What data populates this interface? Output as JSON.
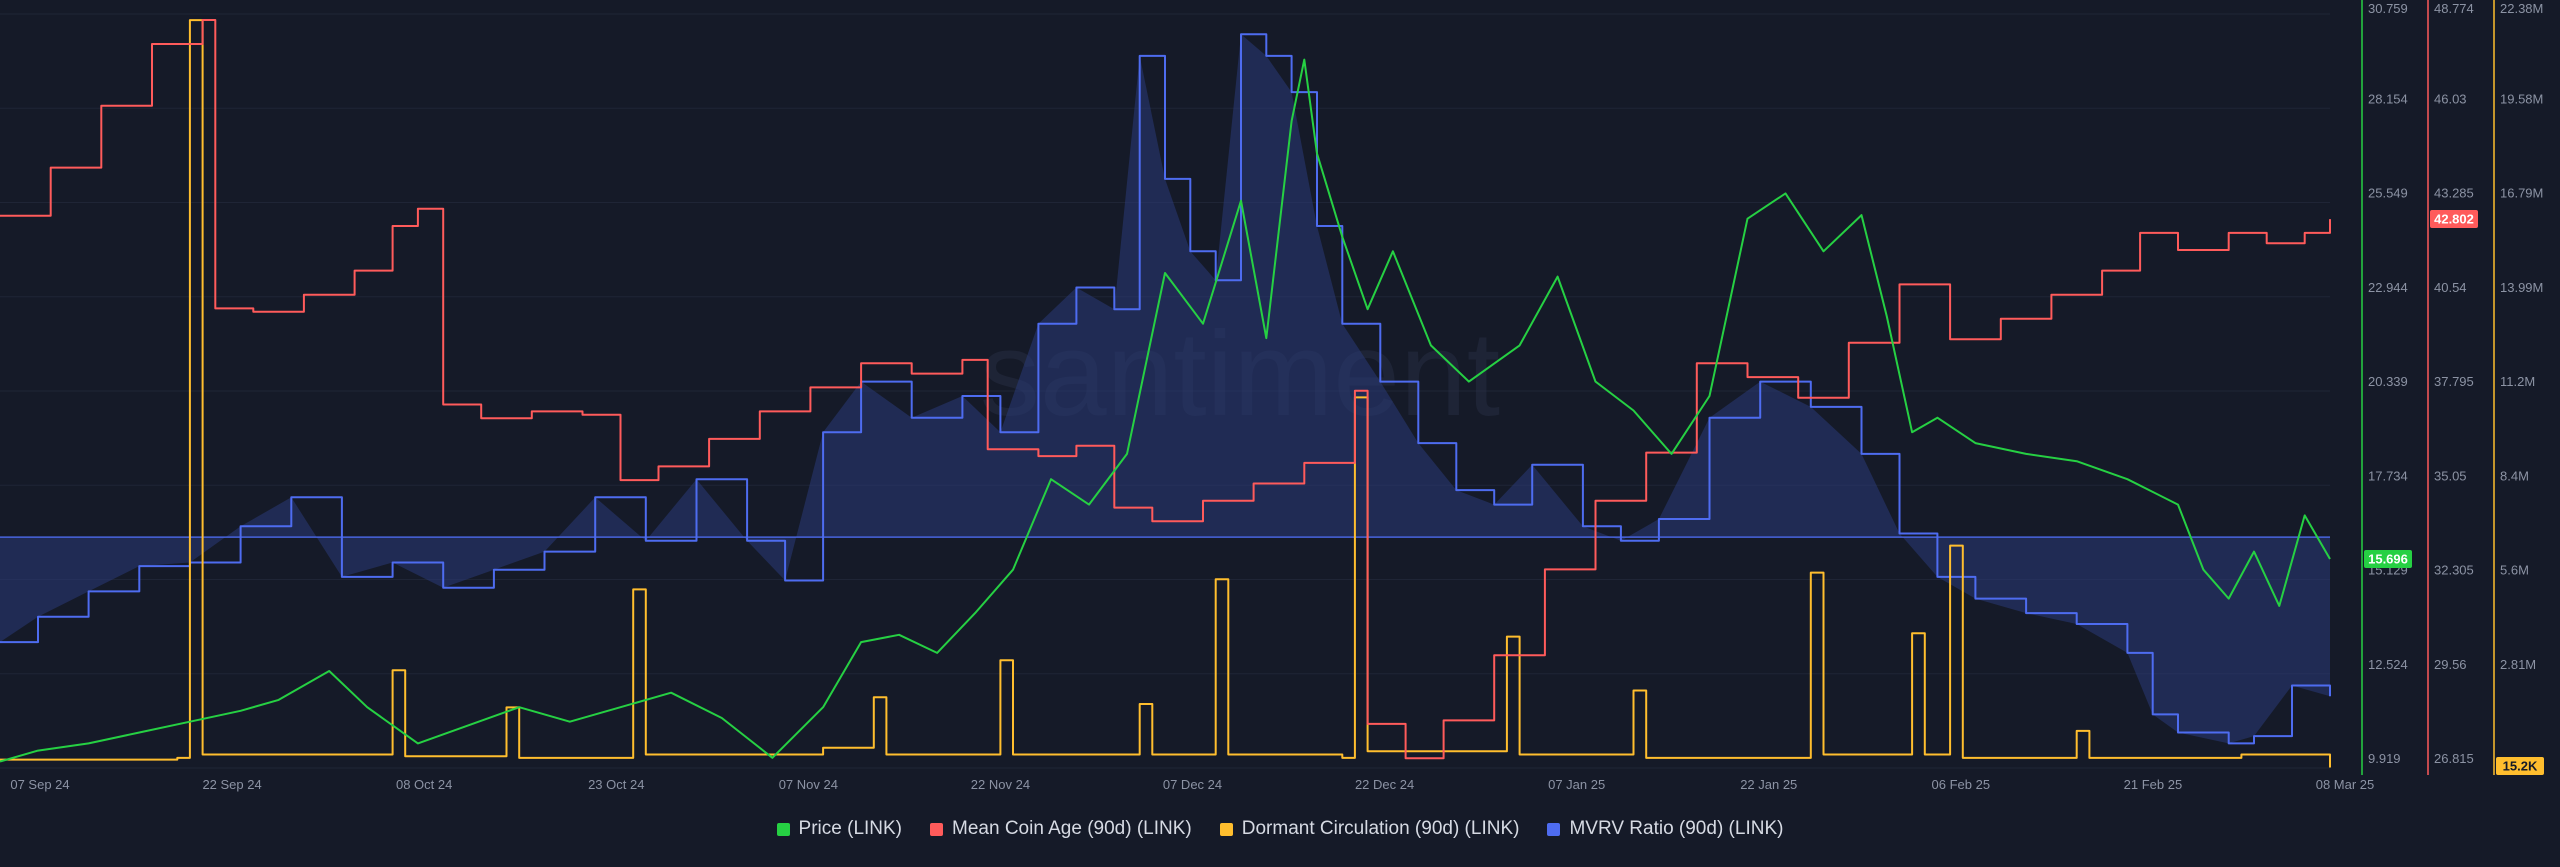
{
  "watermark": "santiment",
  "colors": {
    "background": "#151a28",
    "price": "#26d043",
    "mean_coin_age": "#ff5b5b",
    "dormant": "#ffbe2e",
    "mvrv": "#4e6cf0",
    "mvrv_fill": "#2a3a78",
    "grid": "#1f2536"
  },
  "legend": [
    {
      "label": "Price (LINK)",
      "color": "#26d043"
    },
    {
      "label": "Mean Coin Age (90d) (LINK)",
      "color": "#ff5b5b"
    },
    {
      "label": "Dormant Circulation (90d) (LINK)",
      "color": "#ffbe2e"
    },
    {
      "label": "MVRV Ratio (90d) (LINK)",
      "color": "#4e6cf0"
    }
  ],
  "chart_data": {
    "type": "line",
    "x_range": [
      "2024-09-05",
      "2025-03-08"
    ],
    "x_ticks": [
      "07 Sep 24",
      "22 Sep 24",
      "08 Oct 24",
      "23 Oct 24",
      "07 Nov 24",
      "22 Nov 24",
      "07 Dec 24",
      "22 Dec 24",
      "07 Jan 25",
      "22 Jan 25",
      "06 Feb 25",
      "21 Feb 25",
      "08 Mar 25"
    ],
    "axes": {
      "price": {
        "ticks": [
          "30.759",
          "28.154",
          "25.549",
          "22.944",
          "20.339",
          "17.734",
          "15.129",
          "12.524",
          "9.919"
        ],
        "range": [
          9.919,
          30.759
        ],
        "last": "15.696"
      },
      "mean_coin_age": {
        "ticks": [
          "48.774",
          "46.03",
          "43.285",
          "40.54",
          "37.795",
          "35.05",
          "32.305",
          "29.56",
          "26.815"
        ],
        "range": [
          26.815,
          48.774
        ],
        "last": "42.802"
      },
      "dormant": {
        "ticks": [
          "22.38M",
          "19.58M",
          "16.79M",
          "13.99M",
          "11.2M",
          "8.4M",
          "5.6M",
          "2.81M"
        ],
        "range": [
          0,
          22.38
        ],
        "last": "15.2K"
      }
    },
    "series": [
      {
        "name": "Price (LINK)",
        "axis": "price",
        "points": [
          [
            "2024-09-05",
            10.1
          ],
          [
            "2024-09-08",
            10.4
          ],
          [
            "2024-09-12",
            10.6
          ],
          [
            "2024-09-16",
            10.9
          ],
          [
            "2024-09-20",
            11.2
          ],
          [
            "2024-09-24",
            11.5
          ],
          [
            "2024-09-27",
            11.8
          ],
          [
            "2024-10-01",
            12.6
          ],
          [
            "2024-10-04",
            11.6
          ],
          [
            "2024-10-08",
            10.6
          ],
          [
            "2024-10-12",
            11.1
          ],
          [
            "2024-10-16",
            11.6
          ],
          [
            "2024-10-20",
            11.2
          ],
          [
            "2024-10-24",
            11.6
          ],
          [
            "2024-10-28",
            12.0
          ],
          [
            "2024-11-01",
            11.3
          ],
          [
            "2024-11-05",
            10.2
          ],
          [
            "2024-11-09",
            11.6
          ],
          [
            "2024-11-12",
            13.4
          ],
          [
            "2024-11-15",
            13.6
          ],
          [
            "2024-11-18",
            13.1
          ],
          [
            "2024-11-21",
            14.2
          ],
          [
            "2024-11-24",
            15.4
          ],
          [
            "2024-11-27",
            17.9
          ],
          [
            "2024-11-30",
            17.2
          ],
          [
            "2024-12-03",
            18.6
          ],
          [
            "2024-12-06",
            23.6
          ],
          [
            "2024-12-09",
            22.2
          ],
          [
            "2024-12-12",
            25.6
          ],
          [
            "2024-12-14",
            21.8
          ],
          [
            "2024-12-16",
            27.8
          ],
          [
            "2024-12-17",
            29.5
          ],
          [
            "2024-12-18",
            26.9
          ],
          [
            "2024-12-20",
            24.6
          ],
          [
            "2024-12-22",
            22.6
          ],
          [
            "2024-12-24",
            24.2
          ],
          [
            "2024-12-27",
            21.6
          ],
          [
            "2024-12-30",
            20.6
          ],
          [
            "2025-01-03",
            21.6
          ],
          [
            "2025-01-06",
            23.5
          ],
          [
            "2025-01-09",
            20.6
          ],
          [
            "2025-01-12",
            19.8
          ],
          [
            "2025-01-15",
            18.6
          ],
          [
            "2025-01-18",
            20.2
          ],
          [
            "2025-01-21",
            25.1
          ],
          [
            "2025-01-24",
            25.8
          ],
          [
            "2025-01-27",
            24.2
          ],
          [
            "2025-01-30",
            25.2
          ],
          [
            "2025-02-01",
            22.4
          ],
          [
            "2025-02-03",
            19.2
          ],
          [
            "2025-02-05",
            19.6
          ],
          [
            "2025-02-08",
            18.9
          ],
          [
            "2025-02-12",
            18.6
          ],
          [
            "2025-02-16",
            18.4
          ],
          [
            "2025-02-20",
            17.9
          ],
          [
            "2025-02-24",
            17.2
          ],
          [
            "2025-02-26",
            15.4
          ],
          [
            "2025-02-28",
            14.6
          ],
          [
            "2025-03-02",
            15.9
          ],
          [
            "2025-03-04",
            14.4
          ],
          [
            "2025-03-06",
            16.9
          ],
          [
            "2025-03-08",
            15.696
          ]
        ]
      },
      {
        "name": "Mean Coin Age (90d) (LINK)",
        "axis": "mean_coin_age",
        "points": [
          [
            "2024-09-05",
            42.9
          ],
          [
            "2024-09-09",
            44.3
          ],
          [
            "2024-09-13",
            46.1
          ],
          [
            "2024-09-17",
            47.9
          ],
          [
            "2024-09-21",
            48.6
          ],
          [
            "2024-09-22",
            40.2
          ],
          [
            "2024-09-25",
            40.1
          ],
          [
            "2024-09-29",
            40.6
          ],
          [
            "2024-10-03",
            41.3
          ],
          [
            "2024-10-06",
            42.6
          ],
          [
            "2024-10-08",
            43.1
          ],
          [
            "2024-10-10",
            37.4
          ],
          [
            "2024-10-13",
            37.0
          ],
          [
            "2024-10-17",
            37.2
          ],
          [
            "2024-10-21",
            37.1
          ],
          [
            "2024-10-24",
            35.2
          ],
          [
            "2024-10-27",
            35.6
          ],
          [
            "2024-10-31",
            36.4
          ],
          [
            "2024-11-04",
            37.2
          ],
          [
            "2024-11-08",
            37.9
          ],
          [
            "2024-11-12",
            38.6
          ],
          [
            "2024-11-16",
            38.3
          ],
          [
            "2024-11-20",
            38.7
          ],
          [
            "2024-11-22",
            36.1
          ],
          [
            "2024-11-26",
            35.9
          ],
          [
            "2024-11-29",
            36.2
          ],
          [
            "2024-12-02",
            34.4
          ],
          [
            "2024-12-05",
            34.0
          ],
          [
            "2024-12-09",
            34.6
          ],
          [
            "2024-12-13",
            35.1
          ],
          [
            "2024-12-17",
            35.7
          ],
          [
            "2024-12-21",
            37.8
          ],
          [
            "2024-12-22",
            28.1
          ],
          [
            "2024-12-25",
            27.1
          ],
          [
            "2024-12-28",
            28.2
          ],
          [
            "2025-01-01",
            30.1
          ],
          [
            "2025-01-05",
            32.6
          ],
          [
            "2025-01-09",
            34.6
          ],
          [
            "2025-01-13",
            36.0
          ],
          [
            "2025-01-17",
            38.6
          ],
          [
            "2025-01-21",
            38.2
          ],
          [
            "2025-01-25",
            37.6
          ],
          [
            "2025-01-29",
            39.2
          ],
          [
            "2025-02-02",
            40.9
          ],
          [
            "2025-02-06",
            39.3
          ],
          [
            "2025-02-10",
            39.9
          ],
          [
            "2025-02-14",
            40.6
          ],
          [
            "2025-02-18",
            41.3
          ],
          [
            "2025-02-21",
            42.4
          ],
          [
            "2025-02-24",
            41.9
          ],
          [
            "2025-02-28",
            42.4
          ],
          [
            "2025-03-03",
            42.1
          ],
          [
            "2025-03-06",
            42.4
          ],
          [
            "2025-03-08",
            42.802
          ]
        ]
      },
      {
        "name": "Dormant Circulation (90d) (LINK)",
        "axis": "dormant",
        "points": [
          [
            "2024-09-05",
            0.25
          ],
          [
            "2024-09-19",
            0.3
          ],
          [
            "2024-09-20",
            22.2
          ],
          [
            "2024-09-21",
            0.4
          ],
          [
            "2024-10-01",
            0.4
          ],
          [
            "2024-10-06",
            2.9
          ],
          [
            "2024-10-07",
            0.35
          ],
          [
            "2024-10-15",
            1.8
          ],
          [
            "2024-10-16",
            0.3
          ],
          [
            "2024-10-25",
            5.3
          ],
          [
            "2024-10-26",
            0.4
          ],
          [
            "2024-11-09",
            0.6
          ],
          [
            "2024-11-13",
            2.1
          ],
          [
            "2024-11-14",
            0.4
          ],
          [
            "2024-11-23",
            3.2
          ],
          [
            "2024-11-24",
            0.4
          ],
          [
            "2024-12-04",
            1.9
          ],
          [
            "2024-12-05",
            0.4
          ],
          [
            "2024-12-10",
            5.6
          ],
          [
            "2024-12-11",
            0.4
          ],
          [
            "2024-12-20",
            0.3
          ],
          [
            "2024-12-21",
            11.0
          ],
          [
            "2024-12-22",
            0.5
          ],
          [
            "2025-01-02",
            3.9
          ],
          [
            "2025-01-03",
            0.4
          ],
          [
            "2025-01-12",
            2.3
          ],
          [
            "2025-01-13",
            0.3
          ],
          [
            "2025-01-26",
            5.8
          ],
          [
            "2025-01-27",
            0.4
          ],
          [
            "2025-02-03",
            4.0
          ],
          [
            "2025-02-04",
            0.4
          ],
          [
            "2025-02-06",
            6.6
          ],
          [
            "2025-02-07",
            0.3
          ],
          [
            "2025-02-16",
            1.1
          ],
          [
            "2025-02-17",
            0.3
          ],
          [
            "2025-03-01",
            0.4
          ],
          [
            "2025-03-08",
            0.0152
          ]
        ]
      },
      {
        "name": "MVRV Ratio (90d) (LINK)",
        "axis": "price",
        "fill_to": 16.3,
        "points": [
          [
            "2024-09-05",
            13.4
          ],
          [
            "2024-09-08",
            14.1
          ],
          [
            "2024-09-12",
            14.8
          ],
          [
            "2024-09-16",
            15.5
          ],
          [
            "2024-09-20",
            15.6
          ],
          [
            "2024-09-24",
            16.6
          ],
          [
            "2024-09-28",
            17.4
          ],
          [
            "2024-10-02",
            15.2
          ],
          [
            "2024-10-06",
            15.6
          ],
          [
            "2024-10-10",
            14.9
          ],
          [
            "2024-10-14",
            15.4
          ],
          [
            "2024-10-18",
            15.9
          ],
          [
            "2024-10-22",
            17.4
          ],
          [
            "2024-10-26",
            16.2
          ],
          [
            "2024-10-30",
            17.9
          ],
          [
            "2024-11-03",
            16.2
          ],
          [
            "2024-11-06",
            15.1
          ],
          [
            "2024-11-09",
            19.2
          ],
          [
            "2024-11-12",
            20.6
          ],
          [
            "2024-11-16",
            19.6
          ],
          [
            "2024-11-20",
            20.2
          ],
          [
            "2024-11-23",
            19.2
          ],
          [
            "2024-11-26",
            22.2
          ],
          [
            "2024-11-29",
            23.2
          ],
          [
            "2024-12-02",
            22.6
          ],
          [
            "2024-12-04",
            29.6
          ],
          [
            "2024-12-06",
            26.2
          ],
          [
            "2024-12-08",
            24.2
          ],
          [
            "2024-12-10",
            23.4
          ],
          [
            "2024-12-12",
            30.2
          ],
          [
            "2024-12-14",
            29.6
          ],
          [
            "2024-12-16",
            28.6
          ],
          [
            "2024-12-18",
            24.9
          ],
          [
            "2024-12-20",
            22.2
          ],
          [
            "2024-12-23",
            20.6
          ],
          [
            "2024-12-26",
            18.9
          ],
          [
            "2024-12-29",
            17.6
          ],
          [
            "2025-01-01",
            17.2
          ],
          [
            "2025-01-04",
            18.3
          ],
          [
            "2025-01-08",
            16.6
          ],
          [
            "2025-01-11",
            16.2
          ],
          [
            "2025-01-14",
            16.8
          ],
          [
            "2025-01-18",
            19.6
          ],
          [
            "2025-01-22",
            20.6
          ],
          [
            "2025-01-26",
            19.9
          ],
          [
            "2025-01-30",
            18.6
          ],
          [
            "2025-02-02",
            16.4
          ],
          [
            "2025-02-05",
            15.2
          ],
          [
            "2025-02-08",
            14.6
          ],
          [
            "2025-02-12",
            14.2
          ],
          [
            "2025-02-16",
            13.9
          ],
          [
            "2025-02-20",
            13.1
          ],
          [
            "2025-02-22",
            11.4
          ],
          [
            "2025-02-24",
            10.9
          ],
          [
            "2025-02-28",
            10.6
          ],
          [
            "2025-03-02",
            10.8
          ],
          [
            "2025-03-05",
            12.2
          ],
          [
            "2025-03-08",
            11.9
          ]
        ]
      }
    ]
  }
}
